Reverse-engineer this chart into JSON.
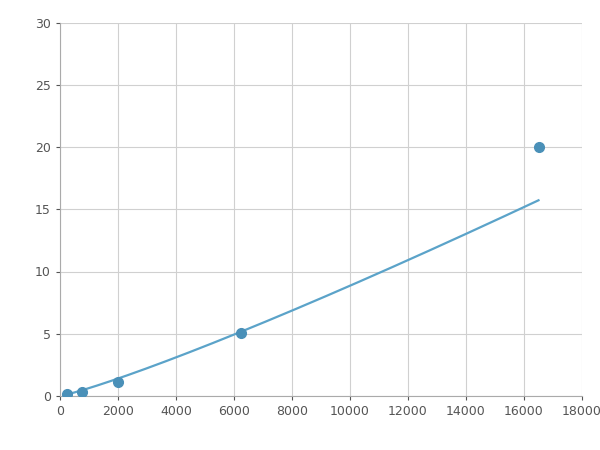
{
  "x_points": [
    250,
    750,
    2000,
    6250,
    16500
  ],
  "y_points": [
    0.2,
    0.3,
    1.1,
    5.1,
    20.0
  ],
  "line_color": "#5ba3c9",
  "marker_color": "#4a90b8",
  "marker_size": 7,
  "line_width": 1.6,
  "xlim": [
    0,
    18000
  ],
  "ylim": [
    0,
    30
  ],
  "xticks": [
    0,
    2000,
    4000,
    6000,
    8000,
    10000,
    12000,
    14000,
    16000,
    18000
  ],
  "yticks": [
    0,
    5,
    10,
    15,
    20,
    25,
    30
  ],
  "xtick_labels": [
    "0",
    "2000",
    "4000",
    "6000",
    "8000",
    "10000",
    "12000",
    "14000",
    "16000",
    "18000"
  ],
  "ytick_labels": [
    "0",
    "5",
    "10",
    "15",
    "20",
    "25",
    "30"
  ],
  "grid_color": "#d0d0d0",
  "background_color": "#ffffff",
  "tick_fontsize": 9,
  "figsize": [
    6.0,
    4.5
  ],
  "dpi": 100
}
